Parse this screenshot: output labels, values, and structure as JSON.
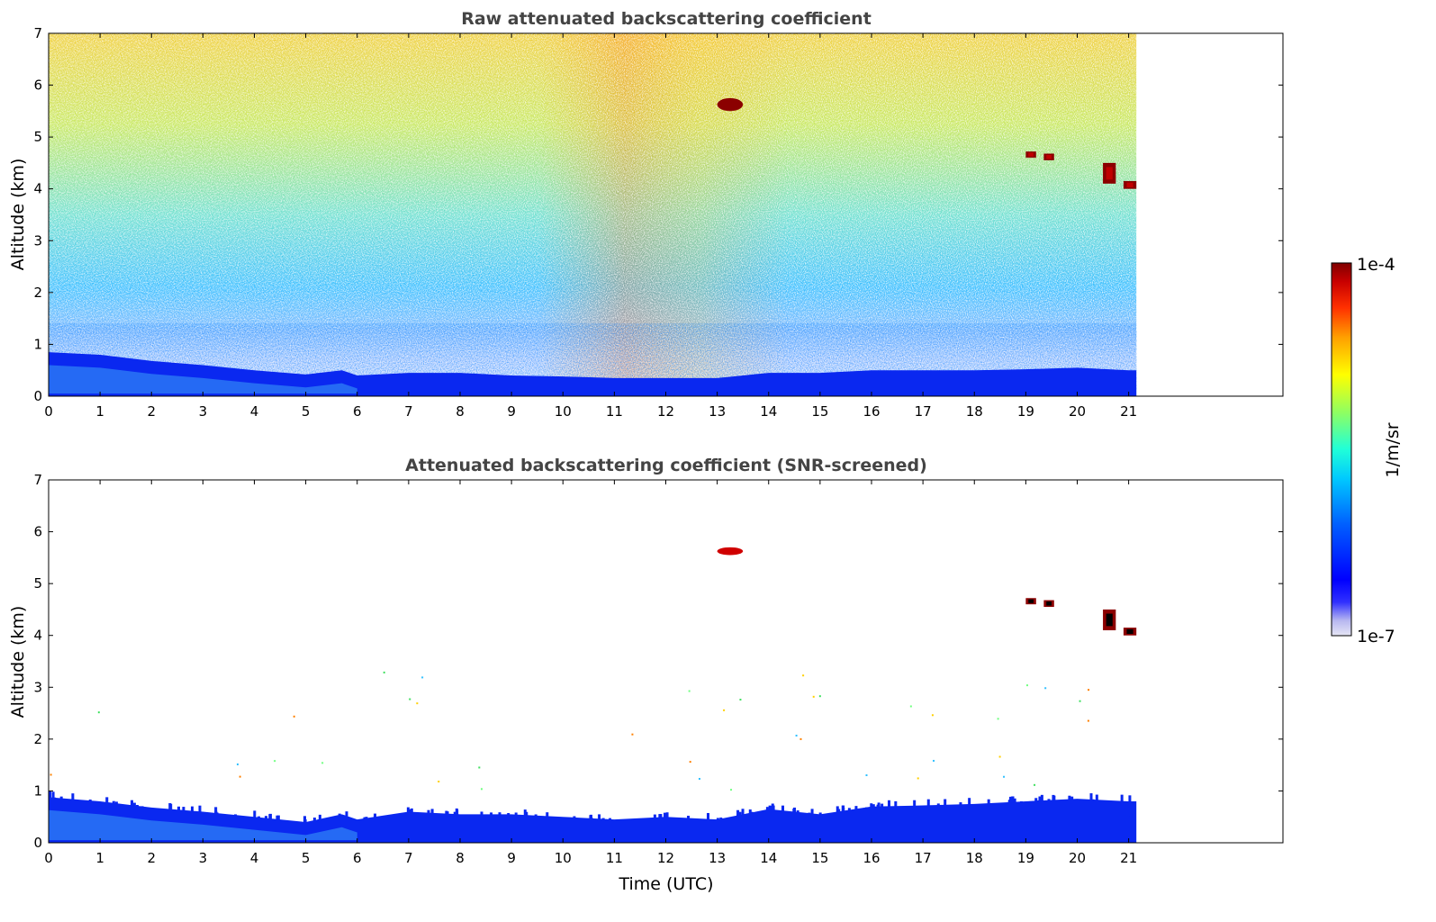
{
  "chart_data": [
    {
      "type": "heatmap",
      "title": "Raw attenuated backscattering coefficient",
      "xlabel": "",
      "ylabel": "Altitude (km)",
      "xlim": [
        0,
        24
      ],
      "ylim": [
        0,
        7
      ],
      "x_ticks": [
        0,
        1,
        2,
        3,
        4,
        5,
        6,
        7,
        8,
        9,
        10,
        11,
        12,
        13,
        14,
        15,
        16,
        17,
        18,
        19,
        20,
        21
      ],
      "y_ticks": [
        0,
        1,
        2,
        3,
        4,
        5,
        6,
        7
      ],
      "data_extent_x": [
        0,
        21.15
      ],
      "boundary_layer_top_km": [
        {
          "x": 0,
          "y": 0.85
        },
        {
          "x": 1,
          "y": 0.8
        },
        {
          "x": 2,
          "y": 0.68
        },
        {
          "x": 3,
          "y": 0.6
        },
        {
          "x": 4,
          "y": 0.5
        },
        {
          "x": 5,
          "y": 0.42
        },
        {
          "x": 5.7,
          "y": 0.5
        },
        {
          "x": 6,
          "y": 0.4
        },
        {
          "x": 7,
          "y": 0.45
        },
        {
          "x": 8,
          "y": 0.45
        },
        {
          "x": 9,
          "y": 0.4
        },
        {
          "x": 10,
          "y": 0.38
        },
        {
          "x": 11,
          "y": 0.35
        },
        {
          "x": 12,
          "y": 0.35
        },
        {
          "x": 13,
          "y": 0.35
        },
        {
          "x": 14,
          "y": 0.45
        },
        {
          "x": 15,
          "y": 0.45
        },
        {
          "x": 16,
          "y": 0.5
        },
        {
          "x": 17,
          "y": 0.5
        },
        {
          "x": 18,
          "y": 0.5
        },
        {
          "x": 19,
          "y": 0.52
        },
        {
          "x": 20,
          "y": 0.55
        },
        {
          "x": 21,
          "y": 0.5
        }
      ],
      "clouds": [
        {
          "x0": 13.0,
          "x1": 13.5,
          "y0": 5.5,
          "y1": 5.75
        },
        {
          "x0": 19.0,
          "x1": 19.2,
          "y0": 4.6,
          "y1": 4.72
        },
        {
          "x0": 19.35,
          "x1": 19.55,
          "y0": 4.55,
          "y1": 4.68
        },
        {
          "x0": 20.5,
          "x1": 20.75,
          "y0": 4.1,
          "y1": 4.5
        },
        {
          "x0": 20.9,
          "x1": 21.15,
          "y0": 4.0,
          "y1": 4.15
        }
      ]
    },
    {
      "type": "heatmap",
      "title": "Attenuated backscattering coefficient (SNR-screened)",
      "xlabel": "Time (UTC)",
      "ylabel": "Altitude (km)",
      "xlim": [
        0,
        24
      ],
      "ylim": [
        0,
        7
      ],
      "x_ticks": [
        0,
        1,
        2,
        3,
        4,
        5,
        6,
        7,
        8,
        9,
        10,
        11,
        12,
        13,
        14,
        15,
        16,
        17,
        18,
        19,
        20,
        21
      ],
      "y_ticks": [
        0,
        1,
        2,
        3,
        4,
        5,
        6,
        7
      ],
      "data_extent_x": [
        0,
        21.15
      ],
      "boundary_layer_top_km": [
        {
          "x": 0,
          "y": 0.88
        },
        {
          "x": 1,
          "y": 0.8
        },
        {
          "x": 2,
          "y": 0.68
        },
        {
          "x": 3,
          "y": 0.6
        },
        {
          "x": 4,
          "y": 0.5
        },
        {
          "x": 5,
          "y": 0.4
        },
        {
          "x": 5.7,
          "y": 0.55
        },
        {
          "x": 6,
          "y": 0.45
        },
        {
          "x": 7,
          "y": 0.6
        },
        {
          "x": 8,
          "y": 0.55
        },
        {
          "x": 9,
          "y": 0.55
        },
        {
          "x": 10,
          "y": 0.5
        },
        {
          "x": 11,
          "y": 0.45
        },
        {
          "x": 12,
          "y": 0.5
        },
        {
          "x": 13,
          "y": 0.45
        },
        {
          "x": 14,
          "y": 0.65
        },
        {
          "x": 15,
          "y": 0.55
        },
        {
          "x": 16,
          "y": 0.7
        },
        {
          "x": 17,
          "y": 0.72
        },
        {
          "x": 18,
          "y": 0.75
        },
        {
          "x": 19,
          "y": 0.8
        },
        {
          "x": 20,
          "y": 0.85
        },
        {
          "x": 21,
          "y": 0.8
        }
      ],
      "clouds": [
        {
          "x0": 13.0,
          "x1": 13.5,
          "y0": 5.55,
          "y1": 5.7
        },
        {
          "x0": 19.0,
          "x1": 19.2,
          "y0": 4.6,
          "y1": 4.72
        },
        {
          "x0": 19.35,
          "x1": 19.55,
          "y0": 4.55,
          "y1": 4.68
        },
        {
          "x0": 20.5,
          "x1": 20.75,
          "y0": 4.1,
          "y1": 4.5
        },
        {
          "x0": 20.9,
          "x1": 21.15,
          "y0": 4.0,
          "y1": 4.15
        }
      ]
    }
  ],
  "colorbar": {
    "label": "1/m/sr",
    "max_label": "1e-4",
    "min_label": "1e-7",
    "scale": "log",
    "colormap": "jet",
    "colors": [
      "#e6e6f5",
      "#c4c4f0",
      "#a0a0f0",
      "#0000ff",
      "#0050ff",
      "#00a0ff",
      "#00e0ff",
      "#40ffc0",
      "#a0ff60",
      "#ffff00",
      "#ffa000",
      "#ff4000",
      "#d00000",
      "#800000"
    ]
  }
}
